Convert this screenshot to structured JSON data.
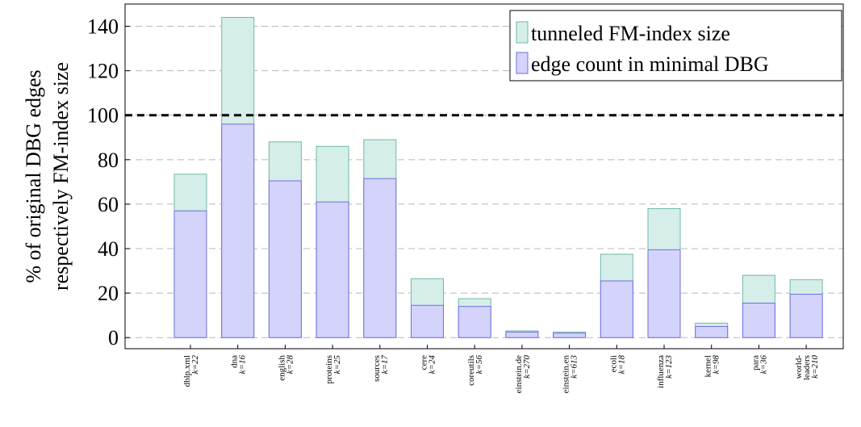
{
  "chart_data": {
    "type": "overlap_bar",
    "y_label": [
      "% of original DBG edges",
      "respectively FM-index size"
    ],
    "categories": [
      [
        "dblp.xml",
        "k=22"
      ],
      [
        "dna",
        "k=16"
      ],
      [
        "english",
        "k=28"
      ],
      [
        "proteins",
        "k=25"
      ],
      [
        "sources",
        "k=17"
      ],
      [
        "cere",
        "k=24"
      ],
      [
        "coreutils",
        "k=56"
      ],
      [
        "einstein.de",
        "k=270"
      ],
      [
        "einstein.en",
        "k=613"
      ],
      [
        "ecoli",
        "k=18"
      ],
      [
        "influenza",
        "k=123"
      ],
      [
        "kernel",
        "k=98"
      ],
      [
        "para",
        "k=36"
      ],
      [
        "world-",
        "leaders",
        "k=210"
      ]
    ],
    "series": [
      {
        "name": "tunneled FM-index size",
        "color": "#d5eee9",
        "stroke": "#6fb9a8",
        "values": [
          73.5,
          144,
          88,
          86,
          89,
          26.5,
          17.5,
          3,
          2.5,
          37.5,
          58,
          6.5,
          28,
          26
        ]
      },
      {
        "name": "edge count in minimal DBG",
        "color": "#d3d3fb",
        "stroke": "#6f6fe0",
        "values": [
          57,
          96,
          70.5,
          61,
          71.5,
          14.5,
          14,
          2.5,
          2,
          25.5,
          39.5,
          5,
          15.5,
          19.5
        ]
      }
    ],
    "ref_line": 100,
    "ylim": [
      -5,
      150
    ],
    "yticks": [
      0,
      20,
      40,
      60,
      80,
      100,
      120,
      140
    ],
    "grid": true,
    "legend": "top-right"
  }
}
